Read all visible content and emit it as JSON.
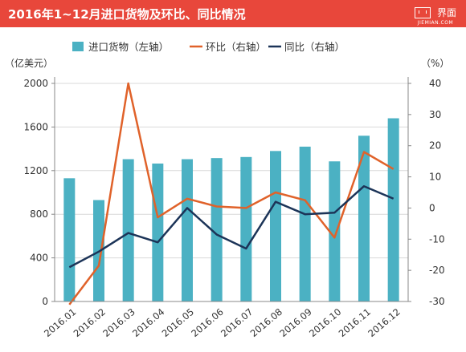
{
  "header": {
    "title": "2016年1~12月进口货物及环比、同比情况",
    "brand_name": "界面",
    "brand_sub": "JIEMIAN.COM",
    "background_color": "#e8473b"
  },
  "chart_data": {
    "type": "bar",
    "categories": [
      "2016.01",
      "2016.02",
      "2016.03",
      "2016.04",
      "2016.05",
      "2016.06",
      "2016.07",
      "2016.08",
      "2016.09",
      "2016.10",
      "2016.11",
      "2016.12"
    ],
    "left_axis": {
      "unit_label": "（亿美元）",
      "ylim": [
        0,
        2000
      ],
      "ticks": [
        0,
        400,
        800,
        1200,
        1600,
        2000
      ]
    },
    "right_axis": {
      "unit_label": "（%）",
      "ylim": [
        -30,
        40
      ],
      "ticks": [
        -30,
        -20,
        -10,
        0,
        10,
        20,
        30,
        40
      ]
    },
    "series": [
      {
        "name": "进口货物（左轴）",
        "type": "bar",
        "axis": "left",
        "color": "#4bb1c3",
        "values": [
          1130,
          930,
          1305,
          1265,
          1305,
          1315,
          1325,
          1380,
          1420,
          1285,
          1520,
          1680
        ]
      },
      {
        "name": "环比（右轴）",
        "type": "line",
        "axis": "right",
        "color": "#e0622a",
        "values": [
          -31,
          -18.5,
          40,
          -3,
          3,
          0.5,
          0,
          5,
          2.5,
          -9.5,
          18,
          12.5
        ]
      },
      {
        "name": "同比（右轴）",
        "type": "line",
        "axis": "right",
        "color": "#1c3458",
        "values": [
          -19,
          -14,
          -8,
          -11,
          0,
          -8.5,
          -13,
          2,
          -2,
          -1.5,
          7,
          3
        ]
      }
    ],
    "grid": true,
    "legend_position": "top"
  }
}
